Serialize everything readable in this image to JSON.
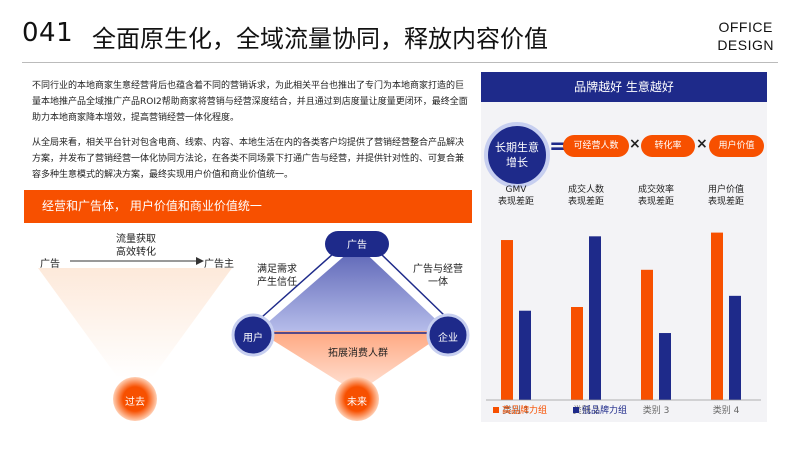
{
  "header": {
    "number": "041",
    "title": "全面原生化，全域流量协同，释放内容价值",
    "brand_line1": "OFFICE",
    "brand_line2": "DESIGN"
  },
  "intro": {
    "paragraph1": "不同行业的本地商家生意经营背后也蕴含着不同的营销诉求，为此相关平台也推出了专门为本地商家打造的巨量本地推产品全域推广产品ROI2帮助商家将营销与经营深度结合，并且通过到店度量让度量更闭环，最终全面助力本地商家降本增效，提高营销经营一体化程度。",
    "paragraph2": "从全局来看，相关平台针对包含电商、线索、内容、本地生活在内的各类客户均提供了营销经营整合产品解决方案，并发布了营销经营一体化协同方法论，在各类不同场景下打通广告与经营，并提供针对性的、可复合兼容多种生意模式的解决方案，最终实现用户价值和商业价值统一。"
  },
  "left_section": {
    "bar_title": "经营和广告体， 用户价值和商业价值统一",
    "funnel": {
      "top_text_line1": "流量获取",
      "top_text_line2": "高效转化",
      "left_label": "广告",
      "right_label": "广告主",
      "bottom_node": "过去"
    },
    "triangle": {
      "top_node": "广告",
      "left_node": "用户",
      "right_node": "企业",
      "bottom_node": "未来",
      "left_edge_line1": "满足需求",
      "left_edge_line2": "产生信任",
      "right_edge_line1": "广告与经营",
      "right_edge_line2": "一体",
      "bottom_edge": "拓展消费人群"
    }
  },
  "right_section": {
    "header": "品牌越好 生意越好",
    "formula": {
      "circle_line1": "长期生意",
      "circle_line2": "增长",
      "eq": "=",
      "times": "×",
      "terms": [
        "可经营人数",
        "转化率",
        "用户价值"
      ]
    }
  },
  "chart_data": {
    "type": "bar",
    "categories": [
      "类别 1",
      "类别 2",
      "类别 3",
      "类别 4"
    ],
    "column_labels": [
      [
        "GMV",
        "表现差距"
      ],
      [
        "成交人数",
        "表现差距"
      ],
      [
        "成交效率",
        "表现差距"
      ],
      [
        "用户价值",
        "表现差距"
      ]
    ],
    "series": [
      {
        "name": "高品牌力组",
        "values": [
          4.3,
          2.5,
          3.5,
          4.5
        ]
      },
      {
        "name": "低品牌力组",
        "values": [
          2.4,
          4.4,
          1.8,
          2.8
        ]
      }
    ],
    "ylim": [
      0,
      5
    ],
    "colors": {
      "high": "#f75000",
      "low": "#1e2a8a"
    },
    "legend": "bottom"
  }
}
